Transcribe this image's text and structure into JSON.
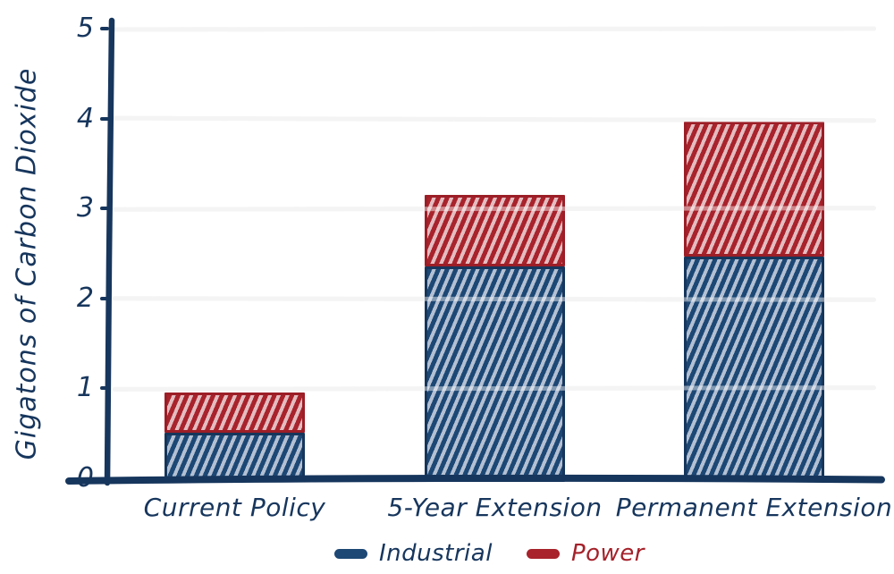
{
  "chart_data": {
    "type": "bar",
    "stacked": true,
    "categories": [
      "Current Policy",
      "5-Year Extension",
      "Permanent Extension"
    ],
    "series": [
      {
        "name": "Industrial",
        "values": [
          0.55,
          2.4,
          2.5
        ],
        "totals_hint": "bottom segment of each stack",
        "color": "#1d4875",
        "hatch_light": "#b3c0d3",
        "border": "#16365c",
        "label_color": "#17365d"
      },
      {
        "name": "Power",
        "values": [
          0.45,
          0.8,
          1.5
        ],
        "totals_hint": "top segment of each stack",
        "color": "#a8232c",
        "hatch_light": "#e4bcc0",
        "border": "#9c1e27",
        "label_color": "#a5212a"
      }
    ],
    "stack_totals": [
      1.0,
      3.2,
      4.0
    ],
    "xlabel": "",
    "ylabel": "Gigatons of Carbon Dioxide",
    "yticks": [
      0,
      1,
      2,
      3,
      4,
      5
    ],
    "ylim": [
      0,
      5
    ],
    "grid": "horizontal",
    "legend_position": "bottom",
    "hatch_style": "steep forward-diagonal stripes, hand-drawn look",
    "colors": {
      "axis": "#17365d",
      "gridline": "#ececec",
      "background": "#ffffff"
    }
  }
}
